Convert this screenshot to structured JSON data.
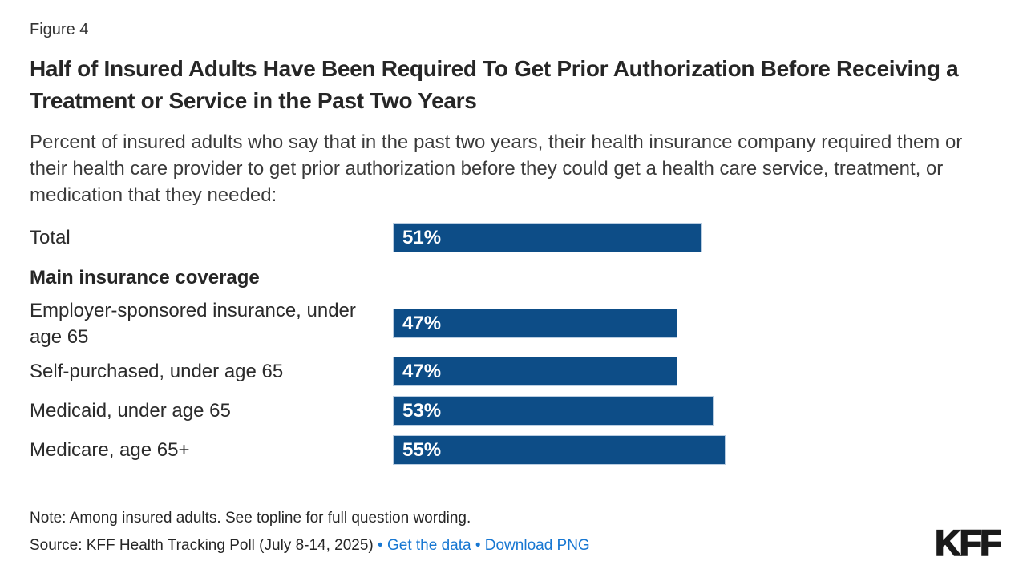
{
  "figure_label": "Figure 4",
  "title": "Half of Insured Adults Have Been Required To Get Prior Authorization Before Receiving a Treatment or Service in the Past Two Years",
  "subtitle": "Percent of insured adults who say that in the past two years, their health insurance company required them or their health care provider to get prior authorization before they could get a health care service, treatment, or medication that they needed:",
  "chart_data": {
    "type": "bar",
    "orientation": "horizontal",
    "unit": "%",
    "xlim": [
      0,
      100
    ],
    "bar_color": "#0d4d87",
    "value_label_color": "#ffffff",
    "legend": "none",
    "grid": false,
    "rows": [
      {
        "kind": "bar",
        "label": "Total",
        "value": 51
      },
      {
        "kind": "header",
        "label": "Main insurance coverage"
      },
      {
        "kind": "bar",
        "label": "Employer-sponsored insurance, under age 65",
        "value": 47
      },
      {
        "kind": "bar",
        "label": "Self-purchased, under age 65",
        "value": 47
      },
      {
        "kind": "bar",
        "label": "Medicaid, under age 65",
        "value": 53
      },
      {
        "kind": "bar",
        "label": "Medicare, age 65+",
        "value": 55
      }
    ]
  },
  "footer": {
    "note": "Note: Among insured adults. See topline for full question wording.",
    "source_prefix": "Source: KFF Health Tracking Poll (July 8-14, 2025)",
    "separator": "•",
    "links": [
      {
        "label": "Get the data"
      },
      {
        "label": "Download PNG"
      }
    ],
    "link_color": "#1777d2",
    "logo": "KFF"
  }
}
